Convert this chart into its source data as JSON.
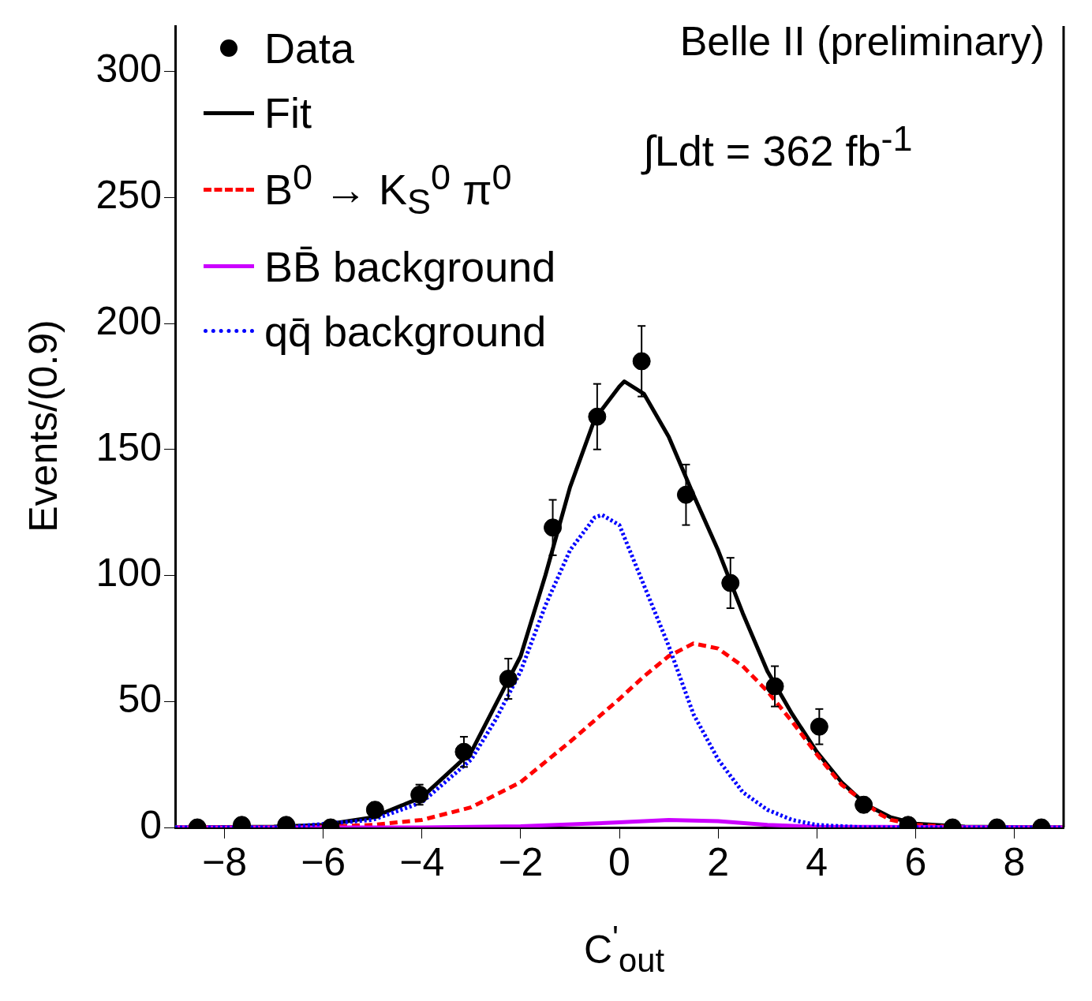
{
  "chart_data": {
    "type": "line",
    "xlabel": "C$^{'}$$_{out}$",
    "ylabel": "Events/(0.9)",
    "annotations": [
      "Belle II (preliminary)",
      "∫Ldt = 362 fb$^{-1}$"
    ],
    "xlim": [
      -9,
      9
    ],
    "xticks": [
      -8,
      -6,
      -4,
      -2,
      0,
      2,
      4,
      6,
      8
    ],
    "ylim": [
      0,
      318
    ],
    "yticks": [
      0,
      50,
      100,
      150,
      200,
      250,
      300
    ],
    "legend": "top left",
    "grid": false,
    "series": [
      {
        "name": "Data",
        "type": "scatter",
        "marker": "circle",
        "color": "#000000",
        "x": [
          -8.55,
          -7.65,
          -6.75,
          -5.85,
          -4.95,
          -4.05,
          -3.15,
          -2.25,
          -1.35,
          -0.45,
          0.45,
          1.35,
          2.25,
          3.15,
          4.05,
          4.95,
          5.85,
          6.75,
          7.65,
          8.55
        ],
        "values": [
          0,
          1,
          1,
          0,
          7,
          13,
          30,
          59,
          119,
          163,
          185,
          132,
          97,
          56,
          40,
          9,
          1,
          0,
          0,
          0
        ],
        "errors": [
          null,
          1,
          1,
          null,
          3,
          4,
          6,
          8,
          11,
          13,
          14,
          12,
          10,
          8,
          7,
          3,
          1,
          null,
          null,
          null
        ]
      },
      {
        "name": "Fit",
        "line_style": "solid",
        "color": "#000000",
        "x": [
          -9,
          -7,
          -6,
          -5,
          -4,
          -3,
          -2,
          -1.5,
          -1,
          -0.5,
          0,
          0.1,
          0.5,
          1,
          1.5,
          2,
          2.5,
          3,
          3.5,
          4,
          4.5,
          5,
          5.5,
          6,
          7,
          9
        ],
        "values": [
          0,
          0.3,
          1,
          4,
          12,
          30,
          68,
          100,
          135,
          162,
          175,
          177,
          172,
          155,
          132,
          110,
          85,
          62,
          45,
          30,
          18,
          9,
          4,
          1.5,
          0.3,
          0
        ]
      },
      {
        "name": "B$^{0}$ → K$_{S}$$^{0}$ π$^{0}$",
        "line_style": "dashed",
        "color": "#ff0000",
        "x": [
          -9,
          -6.5,
          -5,
          -4,
          -3,
          -2,
          -1,
          0,
          0.5,
          1,
          1.5,
          2,
          2.5,
          3,
          3.5,
          4,
          4.5,
          5.3,
          5.5,
          6,
          7,
          9
        ],
        "values": [
          0,
          0,
          1,
          3,
          8,
          18,
          34,
          51,
          60,
          68,
          73,
          71,
          64,
          54,
          42,
          29,
          17,
          5,
          3,
          1,
          0,
          0
        ]
      },
      {
        "name": "BB̄ background",
        "line_style": "solid",
        "color": "#cc00ff",
        "x": [
          -9,
          -4,
          -2,
          0,
          1,
          2,
          3,
          4,
          9
        ],
        "values": [
          0,
          0,
          0.5,
          2,
          3,
          2.5,
          1,
          0.3,
          0
        ]
      },
      {
        "name": "qq̄ background",
        "line_style": "dotted",
        "color": "#0000ff",
        "x": [
          -9,
          -7,
          -6.4,
          -5,
          -4,
          -3,
          -2.5,
          -2,
          -1.5,
          -1,
          -0.5,
          -0.35,
          0,
          0.5,
          1,
          1.5,
          2,
          2.5,
          3,
          3.5,
          4,
          5,
          9
        ],
        "values": [
          0,
          0,
          0.7,
          3,
          10,
          27,
          43,
          62,
          88,
          110,
          123,
          124,
          120,
          96,
          72,
          45,
          27,
          14,
          7,
          3,
          1,
          0,
          0
        ]
      }
    ]
  }
}
